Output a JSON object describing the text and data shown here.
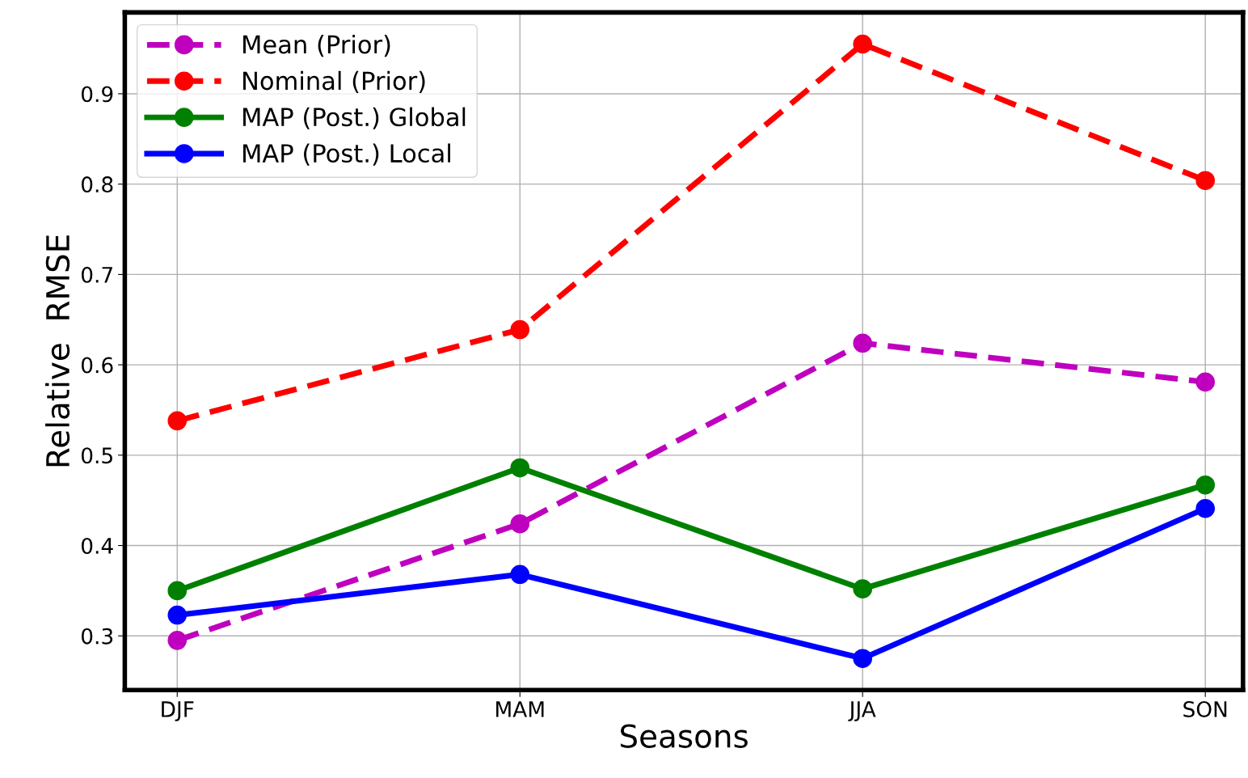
{
  "chart_data": {
    "type": "line",
    "xlabel": "Seasons",
    "ylabel": "Relative  RMSE",
    "categories": [
      "DJF",
      "MAM",
      "JJA",
      "SON"
    ],
    "series": [
      {
        "name": "Mean (Prior)",
        "color": "#bf00bf",
        "line_style": "dashed",
        "values": [
          0.295,
          0.424,
          0.624,
          0.581
        ]
      },
      {
        "name": "Nominal (Prior)",
        "color": "#ff0000",
        "line_style": "dashed",
        "values": [
          0.538,
          0.639,
          0.955,
          0.804
        ]
      },
      {
        "name": "MAP (Post.) Global",
        "color": "#008000",
        "line_style": "solid",
        "values": [
          0.35,
          0.486,
          0.352,
          0.467
        ]
      },
      {
        "name": "MAP (Post.) Local",
        "color": "#0000ff",
        "line_style": "solid",
        "values": [
          0.323,
          0.368,
          0.275,
          0.441
        ]
      }
    ],
    "ylim": [
      0.24,
      0.99
    ],
    "yticks": [
      0.3,
      0.4,
      0.5,
      0.6,
      0.7,
      0.8,
      0.9
    ],
    "marker": "circle",
    "grid": true,
    "legend": "top left"
  }
}
